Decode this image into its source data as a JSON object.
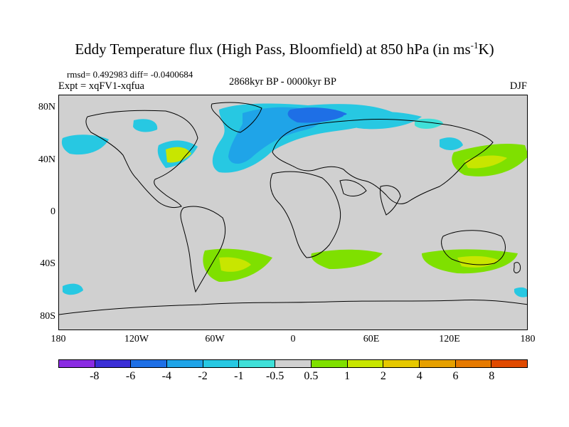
{
  "title_main": "Eddy Temperature flux (High Pass, Bloomfield) at 850 hPa (in ms",
  "title_sup": "-1",
  "title_end": "K)",
  "stats": "rmsd= 0.492983  diff= -0.0400684",
  "experiment": "Expt = xqFV1-xqfua",
  "period": "2868kyr BP - 0000kyr BP",
  "season": "DJF",
  "lat_ticks": [
    "80N",
    "40N",
    "0",
    "40S",
    "80S"
  ],
  "lon_ticks": [
    "180",
    "120W",
    "60W",
    "0",
    "60E",
    "120E",
    "180"
  ],
  "colorbar": {
    "colors": [
      "#8a2be2",
      "#3b2fd6",
      "#1e6fe6",
      "#1fa4e8",
      "#27c8e2",
      "#3fe0d8",
      "#d0d0d0",
      "#7fe000",
      "#c8e600",
      "#e6c800",
      "#e6a000",
      "#e67a00",
      "#e04a00"
    ],
    "labels": [
      "-8",
      "-6",
      "-4",
      "-2",
      "-1",
      "-0.5",
      "0.5",
      "1",
      "2",
      "4",
      "6",
      "8"
    ]
  },
  "map_colors": {
    "background": "#d0d0d0",
    "cyan": "#27c8e2",
    "light_cyan": "#3fe0d8",
    "blue": "#1fa4e8",
    "green": "#7fe000",
    "yellow_green": "#c8e600"
  }
}
